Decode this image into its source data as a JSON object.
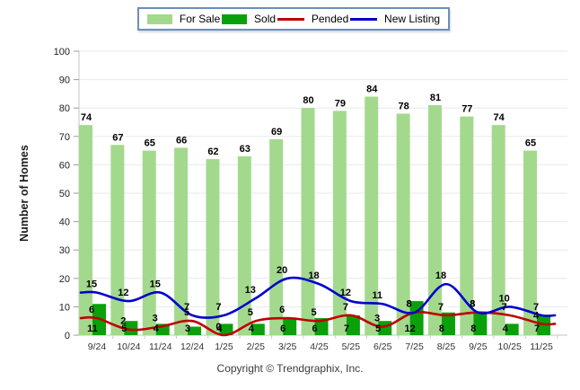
{
  "legend": {
    "items": [
      {
        "label": "For Sale",
        "swatch": "box",
        "color": "#a3d98d"
      },
      {
        "label": "Sold",
        "swatch": "box",
        "color": "#09a109"
      },
      {
        "label": "Pended",
        "swatch": "line",
        "color": "#c00000"
      },
      {
        "label": "New Listing",
        "swatch": "line",
        "color": "#0000cd"
      }
    ]
  },
  "footer": {
    "copyright": "Copyright © Trendgraphix, Inc."
  },
  "chart_data": {
    "type": "bar+line combo",
    "title": "",
    "xlabel": "",
    "ylabel": "Number of Homes",
    "ylim": [
      0,
      100
    ],
    "ytick_step": 10,
    "grid": true,
    "legend_position": "top-center",
    "categories": [
      "9/24",
      "10/24",
      "11/24",
      "12/24",
      "1/25",
      "2/25",
      "3/25",
      "4/25",
      "5/25",
      "6/25",
      "7/25",
      "8/25",
      "9/25",
      "10/25",
      "11/25"
    ],
    "series": [
      {
        "name": "For Sale",
        "type": "bar",
        "color": "#a3d98d",
        "values": [
          74,
          67,
          65,
          66,
          62,
          63,
          69,
          80,
          79,
          84,
          78,
          81,
          77,
          74,
          65
        ]
      },
      {
        "name": "Sold",
        "type": "bar",
        "color": "#09a109",
        "values": [
          11,
          5,
          4,
          3,
          4,
          4,
          6,
          6,
          7,
          5,
          12,
          8,
          8,
          4,
          7
        ]
      },
      {
        "name": "Pended",
        "type": "line",
        "color": "#c00000",
        "values": [
          6,
          2,
          3,
          5,
          0,
          5,
          6,
          5,
          7,
          3,
          8,
          7,
          8,
          7,
          4
        ]
      },
      {
        "name": "New Listing",
        "type": "line",
        "color": "#0000cd",
        "values": [
          15,
          12,
          15,
          7,
          7,
          13,
          20,
          18,
          12,
          11,
          8,
          18,
          8,
          10,
          7
        ]
      }
    ]
  }
}
